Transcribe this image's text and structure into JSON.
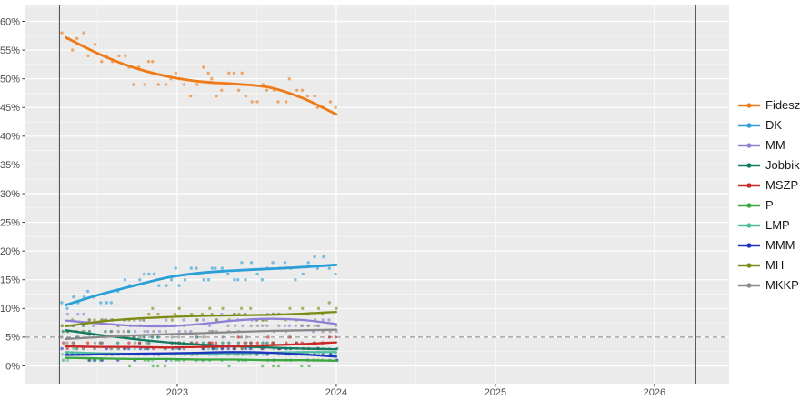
{
  "chart_data": {
    "type": "scatter",
    "description": "Opinion polling trend chart, Hungarian parties, poll dots with smoothed trend lines",
    "x_axis": {
      "ticks": [
        "2023",
        "2024",
        "2025",
        "2026"
      ],
      "tick_values": [
        2023,
        2024,
        2025,
        2026
      ],
      "lim": [
        2022.046,
        2026.469
      ],
      "grid": true
    },
    "y_axis": {
      "ticks": [
        "0%",
        "5%",
        "10%",
        "15%",
        "20%",
        "25%",
        "30%",
        "35%",
        "40%",
        "45%",
        "50%",
        "55%",
        "60%"
      ],
      "tick_values": [
        0,
        5,
        10,
        15,
        20,
        25,
        30,
        35,
        40,
        45,
        50,
        55,
        60
      ],
      "lim": [
        -3.09,
        62.77
      ],
      "grid": true
    },
    "threshold_line": {
      "value": 5,
      "style": "dashed",
      "color": "#9a9a9a"
    },
    "vertical_markers": [
      {
        "x": 2022.26
      },
      {
        "x": 2026.26
      }
    ],
    "panel_color": "#ebebeb",
    "grid_major_color": "#ffffff",
    "grid_minor_color": "#f5f5f5",
    "legend_position": "right",
    "trend_x": [
      2022.3,
      2022.51,
      2022.72,
      2022.94,
      2023.15,
      2023.36,
      2023.58,
      2023.79,
      2024.0
    ],
    "series": [
      {
        "name": "Fidesz",
        "color": "#ee7a18",
        "noise": 3.0,
        "trend": [
          57.2,
          54.3,
          52.0,
          50.4,
          49.5,
          49.1,
          48.5,
          46.6,
          43.8
        ]
      },
      {
        "name": "DK",
        "color": "#2b9fd8",
        "noise": 2.1,
        "trend": [
          10.6,
          12.4,
          13.9,
          15.4,
          16.2,
          16.6,
          16.9,
          17.2,
          17.6
        ]
      },
      {
        "name": "MM",
        "color": "#8f80d6",
        "noise": 1.4,
        "trend": [
          7.9,
          7.4,
          7.0,
          6.9,
          7.3,
          7.9,
          8.2,
          8.0,
          7.3
        ]
      },
      {
        "name": "Jobbik",
        "color": "#13795f",
        "noise": 1.2,
        "trend": [
          6.2,
          5.4,
          4.7,
          4.1,
          3.7,
          3.4,
          3.2,
          3.0,
          2.9
        ]
      },
      {
        "name": "MSZP",
        "color": "#c92626",
        "noise": 1.1,
        "trend": [
          3.4,
          3.3,
          3.3,
          3.2,
          3.3,
          3.4,
          3.6,
          3.8,
          4.1
        ]
      },
      {
        "name": "P",
        "color": "#3aa83e",
        "noise": 0.9,
        "trend": [
          1.4,
          1.3,
          1.2,
          1.2,
          1.1,
          1.1,
          1.0,
          1.0,
          0.9
        ]
      },
      {
        "name": "LMP",
        "color": "#4fbf9f",
        "noise": 1.0,
        "trend": [
          2.4,
          2.2,
          2.1,
          2.0,
          2.1,
          2.2,
          2.3,
          2.4,
          2.4
        ]
      },
      {
        "name": "MMM",
        "color": "#1e35bd",
        "noise": 1.0,
        "trend": [
          1.9,
          2.0,
          2.1,
          2.2,
          2.3,
          2.4,
          2.3,
          2.0,
          1.6
        ]
      },
      {
        "name": "MH",
        "color": "#7d8b15",
        "noise": 1.4,
        "trend": [
          6.9,
          7.7,
          8.2,
          8.5,
          8.7,
          8.8,
          8.9,
          9.1,
          9.4
        ]
      },
      {
        "name": "MKKP",
        "color": "#8a8a8a",
        "noise": 1.4,
        "trend": [
          4.7,
          5.0,
          5.3,
          5.5,
          5.7,
          5.9,
          6.1,
          6.2,
          6.3
        ]
      }
    ],
    "scatter": {
      "seed": 20231107,
      "t_start": 2022.28,
      "t_end": 2024.01,
      "step_min": 0.022,
      "step_rand": 0.022,
      "point_opacity": 0.62,
      "point_radius": 1.7
    }
  }
}
